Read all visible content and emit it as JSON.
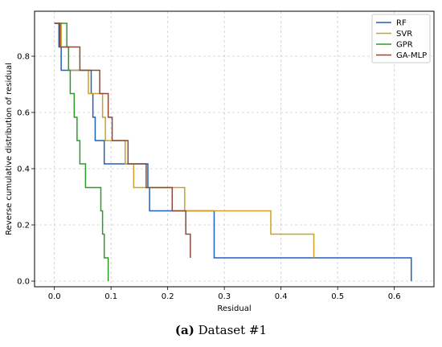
{
  "caption": {
    "label": "(a)",
    "text": "Dataset #1"
  },
  "chart_data": {
    "type": "line",
    "step": true,
    "xlabel": "Residual",
    "ylabel": "Reverse cumulative distribution of residual",
    "xlim": [
      -0.035,
      0.67
    ],
    "ylim": [
      -0.02,
      0.96
    ],
    "xticks": [
      0.0,
      0.1,
      0.2,
      0.3,
      0.4,
      0.5,
      0.6
    ],
    "xtick_labels": [
      "0.0",
      "0.1",
      "0.2",
      "0.3",
      "0.4",
      "0.5",
      "0.6"
    ],
    "yticks": [
      0.0,
      0.2,
      0.4,
      0.6,
      0.8
    ],
    "ytick_labels": [
      "0.0",
      "0.2",
      "0.4",
      "0.6",
      "0.8"
    ],
    "grid": true,
    "legend_position": "top-right",
    "series": [
      {
        "name": "RF",
        "color": "#1f5fbf",
        "x": [
          0.0,
          0.008,
          0.012,
          0.065,
          0.068,
          0.072,
          0.088,
          0.165,
          0.168,
          0.282,
          0.63
        ],
        "y": [
          0.917,
          0.833,
          0.75,
          0.667,
          0.583,
          0.5,
          0.417,
          0.333,
          0.25,
          0.083,
          0.0
        ]
      },
      {
        "name": "SVR",
        "color": "#c9a227",
        "x": [
          0.005,
          0.012,
          0.025,
          0.06,
          0.085,
          0.09,
          0.125,
          0.14,
          0.23,
          0.382,
          0.458
        ],
        "y": [
          0.917,
          0.833,
          0.75,
          0.667,
          0.583,
          0.5,
          0.417,
          0.333,
          0.25,
          0.167,
          0.083
        ]
      },
      {
        "name": "GPR",
        "color": "#2e9a2e",
        "x": [
          0.0,
          0.022,
          0.025,
          0.028,
          0.035,
          0.04,
          0.045,
          0.055,
          0.082,
          0.085,
          0.088,
          0.095
        ],
        "y": [
          0.917,
          0.833,
          0.75,
          0.667,
          0.583,
          0.5,
          0.417,
          0.333,
          0.25,
          0.167,
          0.083,
          0.0
        ]
      },
      {
        "name": "GA-MLP",
        "color": "#8b4a3a",
        "x": [
          0.0,
          0.01,
          0.045,
          0.08,
          0.095,
          0.102,
          0.13,
          0.162,
          0.208,
          0.232,
          0.24
        ],
        "y": [
          0.917,
          0.833,
          0.75,
          0.667,
          0.583,
          0.5,
          0.417,
          0.333,
          0.25,
          0.167,
          0.083
        ]
      }
    ]
  }
}
